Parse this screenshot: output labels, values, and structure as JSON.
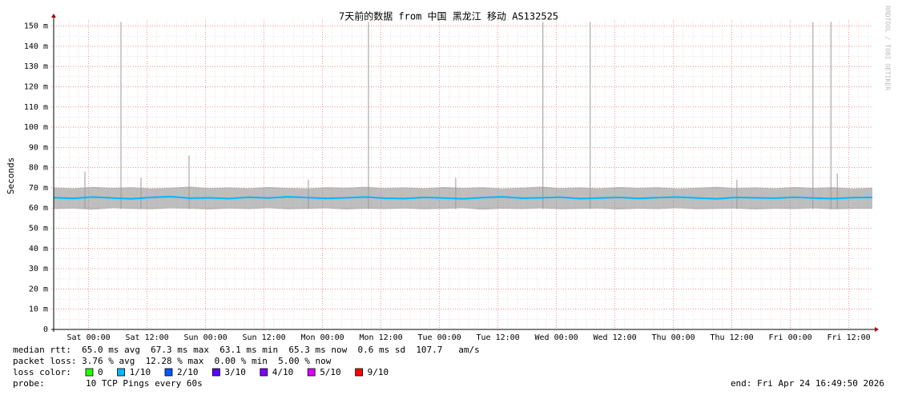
{
  "chart_data": {
    "type": "smokeping",
    "title": "7天前的数据 from 中国 黑龙江 移动 AS132525",
    "y_label": "Seconds",
    "watermark": "RRDTOOL / TOBI OETIKER",
    "xlim": [
      0,
      168
    ],
    "xticks": [
      {
        "value": 7.17,
        "label": "Sat 00:00"
      },
      {
        "value": 19.17,
        "label": "Sat 12:00"
      },
      {
        "value": 31.17,
        "label": "Sun 00:00"
      },
      {
        "value": 43.17,
        "label": "Sun 12:00"
      },
      {
        "value": 55.17,
        "label": "Mon 00:00"
      },
      {
        "value": 67.17,
        "label": "Mon 12:00"
      },
      {
        "value": 79.17,
        "label": "Tue 00:00"
      },
      {
        "value": 91.17,
        "label": "Tue 12:00"
      },
      {
        "value": 103.17,
        "label": "Wed 00:00"
      },
      {
        "value": 115.17,
        "label": "Wed 12:00"
      },
      {
        "value": 127.17,
        "label": "Thu 00:00"
      },
      {
        "value": 139.17,
        "label": "Thu 12:00"
      },
      {
        "value": 151.17,
        "label": "Fri 00:00"
      },
      {
        "value": 163.17,
        "label": "Fri 12:00"
      }
    ],
    "ylim": [
      0,
      0.153
    ],
    "yticks": [
      0,
      {
        "value": 0.01,
        "label": "10 m"
      },
      {
        "value": 0.02,
        "label": "20 m"
      },
      {
        "value": 0.03,
        "label": "30 m"
      },
      {
        "value": 0.04,
        "label": "40 m"
      },
      {
        "value": 0.05,
        "label": "50 m"
      },
      {
        "value": 0.06,
        "label": "60 m"
      },
      {
        "value": 0.07,
        "label": "70 m"
      },
      {
        "value": 0.08,
        "label": "80 m"
      },
      {
        "value": 0.09,
        "label": "90 m"
      },
      {
        "value": 0.1,
        "label": "100 m"
      },
      {
        "value": 0.11,
        "label": "110 m"
      },
      {
        "value": 0.12,
        "label": "120 m"
      },
      {
        "value": 0.13,
        "label": "130 m"
      },
      {
        "value": 0.14,
        "label": "140 m"
      },
      {
        "value": 0.15,
        "label": "150 m"
      }
    ],
    "grid": true,
    "x": [
      0,
      4,
      8,
      12,
      16,
      20,
      24,
      28,
      32,
      36,
      40,
      44,
      48,
      52,
      56,
      60,
      64,
      68,
      72,
      76,
      80,
      84,
      88,
      92,
      96,
      100,
      104,
      108,
      112,
      116,
      120,
      124,
      128,
      132,
      136,
      140,
      144,
      148,
      152,
      156,
      160,
      164,
      168
    ],
    "median": {
      "color": "#00b8ff",
      "values": [
        0.0652,
        0.0648,
        0.0655,
        0.065,
        0.0646,
        0.0653,
        0.0657,
        0.0649,
        0.0651,
        0.0647,
        0.0654,
        0.065,
        0.0656,
        0.0652,
        0.0648,
        0.0651,
        0.0655,
        0.0649,
        0.0647,
        0.0653,
        0.065,
        0.0646,
        0.0652,
        0.0656,
        0.0649,
        0.0651,
        0.0654,
        0.0647,
        0.065,
        0.0653,
        0.0648,
        0.0652,
        0.0655,
        0.065,
        0.0646,
        0.0653,
        0.0651,
        0.0649,
        0.0654,
        0.065,
        0.0647,
        0.0652,
        0.0653
      ]
    },
    "smoke": {
      "color": "#888888",
      "low": [
        0.0595,
        0.0598,
        0.0592,
        0.06,
        0.0596,
        0.0594,
        0.0599,
        0.0597,
        0.0593,
        0.0598,
        0.0595,
        0.06,
        0.0594,
        0.0596,
        0.0599,
        0.0593,
        0.0597,
        0.0595,
        0.0598,
        0.0594,
        0.0596,
        0.06,
        0.0592,
        0.0597,
        0.0595,
        0.0599,
        0.0594,
        0.0596,
        0.0598,
        0.0593,
        0.0597,
        0.0595,
        0.06,
        0.0594,
        0.0596,
        0.0598,
        0.0593,
        0.0597,
        0.0595,
        0.0599,
        0.0594,
        0.0596,
        0.0597
      ],
      "high": [
        0.0702,
        0.0698,
        0.0705,
        0.07,
        0.0703,
        0.0697,
        0.0701,
        0.0706,
        0.0699,
        0.0702,
        0.0698,
        0.0704,
        0.07,
        0.0697,
        0.0703,
        0.0701,
        0.0705,
        0.0699,
        0.0702,
        0.0698,
        0.0704,
        0.07,
        0.0703,
        0.0697,
        0.0701,
        0.0706,
        0.0699,
        0.0702,
        0.0698,
        0.0704,
        0.07,
        0.0703,
        0.0697,
        0.0701,
        0.0705,
        0.0699,
        0.0702,
        0.0698,
        0.0704,
        0.07,
        0.0703,
        0.0697,
        0.0701
      ]
    },
    "spikes": {
      "x": [
        6.41,
        13.81,
        17.92,
        27.78,
        52.27,
        64.6,
        82.5,
        100.4,
        110.1,
        140.2,
        155.8,
        159.5,
        160.8
      ],
      "values": [
        0.078,
        0.152,
        0.075,
        0.086,
        0.074,
        0.152,
        0.075,
        0.152,
        0.152,
        0.074,
        0.152,
        0.152,
        0.077
      ]
    },
    "summary": [
      "median rtt:  65.0 ms avg  67.3 ms max  63.1 ms min  65.3 ms now  0.6 ms sd  107.7   am/s",
      "packet loss: 3.76 % avg  12.28 % max  0.00 % min  5.00 % now"
    ],
    "loss_label": "loss color:",
    "loss_colors": [
      {
        "label": "0",
        "color": "#26ff00"
      },
      {
        "label": "1/10",
        "color": "#00b8ff"
      },
      {
        "label": "2/10",
        "color": "#0059ff"
      },
      {
        "label": "3/10",
        "color": "#5e00ff"
      },
      {
        "label": "4/10",
        "color": "#7e00ff"
      },
      {
        "label": "5/10",
        "color": "#dd00ff"
      },
      {
        "label": "9/10",
        "color": "#ff0000"
      }
    ],
    "probe_label": "probe:",
    "probe": "10 TCP Pings every 60s",
    "end": "end: Fri Apr 24 16:49:50 2026"
  }
}
